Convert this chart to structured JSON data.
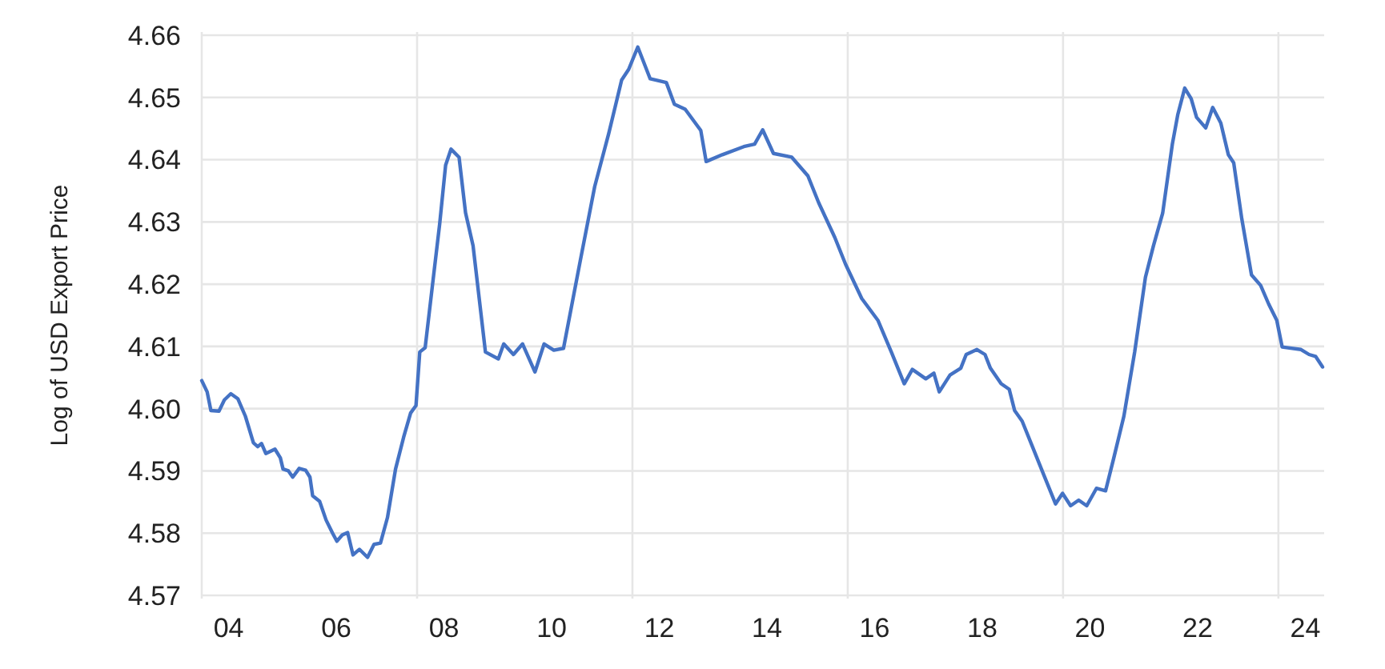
{
  "chart_data": {
    "type": "line",
    "ylabel": "Log of USD Export Price",
    "xlim": [
      3.5,
      24.35
    ],
    "ylim": [
      4.57,
      4.66
    ],
    "yticks": [
      {
        "value": 4.57,
        "label": "4.57"
      },
      {
        "value": 4.58,
        "label": "4.58"
      },
      {
        "value": 4.59,
        "label": "4.59"
      },
      {
        "value": 4.6,
        "label": "4.60"
      },
      {
        "value": 4.61,
        "label": "4.61"
      },
      {
        "value": 4.62,
        "label": "4.62"
      },
      {
        "value": 4.63,
        "label": "4.63"
      },
      {
        "value": 4.64,
        "label": "4.64"
      },
      {
        "value": 4.65,
        "label": "4.65"
      },
      {
        "value": 4.66,
        "label": "4.66"
      }
    ],
    "xticks": [
      {
        "value": 3.5,
        "label": null
      },
      {
        "value": 4,
        "label": "04"
      },
      {
        "value": 6,
        "label": "06"
      },
      {
        "value": 7.5,
        "label": null
      },
      {
        "value": 8,
        "label": "08"
      },
      10,
      {
        "value": 11.5,
        "label": null
      },
      12,
      14,
      {
        "value": 15.5,
        "label": null
      },
      16,
      18,
      {
        "value": 19.5,
        "label": null
      },
      20,
      22,
      {
        "value": 23.5,
        "label": null
      },
      24
    ],
    "grid": true,
    "marker": "none",
    "line_style": "solid",
    "x": [
      3.5,
      3.6,
      3.67,
      3.82,
      3.92,
      4.04,
      4.17,
      4.31,
      4.46,
      4.54,
      4.61,
      4.69,
      4.86,
      4.96,
      5.01,
      5.11,
      5.19,
      5.31,
      5.43,
      5.51,
      5.56,
      5.69,
      5.81,
      5.93,
      6.01,
      6.11,
      6.21,
      6.31,
      6.43,
      6.58,
      6.7,
      6.82,
      6.95,
      7.1,
      7.25,
      7.38,
      7.48,
      7.55,
      7.65,
      7.78,
      7.92,
      8.03,
      8.13,
      8.28,
      8.4,
      8.54,
      8.77,
      9.01,
      9.11,
      9.29,
      9.46,
      9.69,
      9.86,
      10.04,
      10.22,
      10.53,
      10.8,
      11.06,
      11.3,
      11.43,
      11.6,
      11.83,
      12.13,
      12.28,
      12.48,
      12.77,
      12.87,
      13.17,
      13.57,
      13.77,
      13.92,
      14.12,
      14.46,
      14.76,
      14.96,
      15.26,
      15.46,
      15.76,
      16.06,
      16.31,
      16.55,
      16.7,
      16.95,
      17.1,
      17.2,
      17.4,
      17.6,
      17.7,
      17.9,
      18.05,
      18.15,
      18.35,
      18.5,
      18.6,
      18.74,
      18.94,
      19.14,
      19.36,
      19.49,
      19.64,
      19.79,
      19.94,
      20.12,
      20.29,
      20.44,
      20.63,
      20.83,
      21.03,
      21.18,
      21.35,
      21.53,
      21.63,
      21.76,
      21.88,
      21.98,
      22.15,
      22.28,
      22.43,
      22.57,
      22.67,
      22.82,
      23.0,
      23.17,
      23.32,
      23.47,
      23.57,
      23.92,
      24.07,
      24.19,
      24.32
    ],
    "series": [
      {
        "color": "#4472c4",
        "values": [
          4.6045,
          4.6027,
          4.5997,
          4.5996,
          4.6014,
          4.6024,
          4.6016,
          4.5988,
          4.5945,
          4.5939,
          4.5944,
          4.5928,
          4.5935,
          4.5921,
          4.5903,
          4.59,
          4.589,
          4.5904,
          4.5901,
          4.589,
          4.586,
          4.5851,
          4.5821,
          4.58,
          4.5787,
          4.5797,
          4.5801,
          4.5765,
          4.5774,
          4.5761,
          4.5782,
          4.5784,
          4.5825,
          4.5903,
          4.5954,
          4.5993,
          4.6005,
          4.6091,
          4.6098,
          4.6194,
          4.6297,
          4.6391,
          4.6417,
          4.6404,
          4.6315,
          4.6262,
          4.6091,
          4.608,
          4.6104,
          4.6087,
          4.6104,
          4.6059,
          4.6104,
          4.6094,
          4.6097,
          4.6237,
          4.6357,
          4.6442,
          4.6528,
          4.6545,
          4.6581,
          4.653,
          4.6524,
          4.6489,
          4.6481,
          4.6447,
          4.6397,
          4.6408,
          4.6421,
          4.6425,
          4.6448,
          4.641,
          4.6404,
          4.6374,
          4.6331,
          4.6275,
          4.6232,
          4.6177,
          4.6142,
          4.6091,
          4.604,
          4.6063,
          4.6048,
          4.6057,
          4.6027,
          4.6054,
          4.6065,
          4.6087,
          4.6095,
          4.6087,
          4.6065,
          4.604,
          4.6031,
          4.5997,
          4.598,
          4.5937,
          4.5894,
          4.5847,
          4.5864,
          4.5844,
          4.5853,
          4.5844,
          4.5872,
          4.5868,
          4.592,
          4.5988,
          4.6091,
          4.6211,
          4.6262,
          4.6314,
          4.6425,
          4.6472,
          4.6515,
          4.6498,
          4.6468,
          4.6451,
          4.6484,
          4.6459,
          4.6408,
          4.6395,
          4.6305,
          4.6215,
          4.6198,
          4.6168,
          4.6142,
          4.6099,
          4.6095,
          4.6087,
          4.6084,
          4.6067
        ]
      }
    ]
  }
}
